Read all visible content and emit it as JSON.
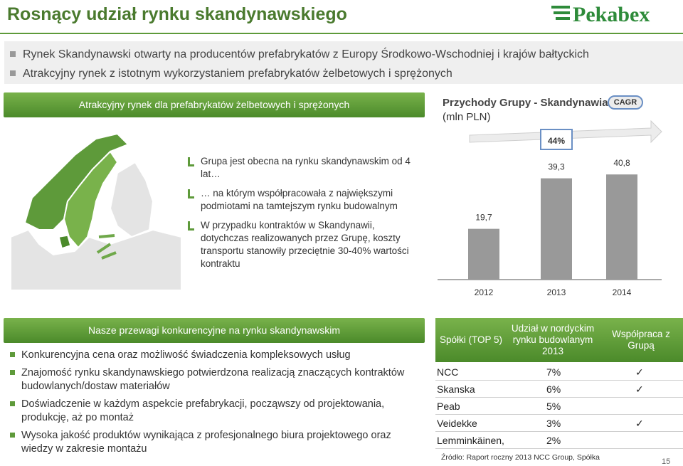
{
  "page": {
    "title": "Rosnący udział rynku skandynawskiego",
    "logo_text": "Pekabex",
    "top_bullets": [
      "Rynek Skandynawski otwarty na producentów prefabrykatów z Europy Środkowo-Wschodniej i krajów bałtyckich",
      "Atrakcyjny rynek z istotnym wykorzystaniem prefabrykatów żelbetowych i sprężonych"
    ],
    "section_top": {
      "header": "Atrakcyjny rynek dla prefabrykatów żelbetowych i sprężonych",
      "bullets": [
        "Grupa jest obecna na rynku skandynawskim od 4 lat…",
        "… na którym współpracowała z największymi podmiotami na tamtejszym rynku budowalnym",
        "W przypadku kontraktów w Skandynawii, dotychczas realizowanych przez Grupę, koszty transportu stanowiły przeciętnie 30-40% wartości kontraktu"
      ]
    },
    "section_bottom": {
      "header": "Nasze przewagi konkurencyjne na rynku skandynawskim",
      "bullets": [
        "Konkurencyjna cena oraz możliwość świadczenia kompleksowych usług",
        "Znajomość rynku skandynawskiego potwierdzona realizacją znaczących kontraktów budowlanych/dostaw materiałów",
        "Doświadczenie w każdym aspekcie prefabrykacji, począwszy od projektowania, produkcję, aż po montaż",
        "Wysoka jakość produktów wynikająca z profesjonalnego biura projektowego oraz wiedzy w zakresie montażu"
      ]
    },
    "table": {
      "headers": [
        "Spółki (TOP 5)",
        "Udział w nordyckim rynku budowlanym 2013",
        "Współpraca z Grupą"
      ],
      "rows": [
        {
          "company": "NCC",
          "share": "7%",
          "cooperation": "✓"
        },
        {
          "company": "Skanska",
          "share": "6%",
          "cooperation": "✓"
        },
        {
          "company": "Peab",
          "share": "5%",
          "cooperation": ""
        },
        {
          "company": "Veidekke",
          "share": "3%",
          "cooperation": "✓"
        },
        {
          "company": "Lemminkäinen,",
          "share": "2%",
          "cooperation": ""
        }
      ]
    },
    "source": "Źródło: Raport roczny 2013 NCC Group, Spółka",
    "page_number": "15"
  },
  "colors": {
    "brand_green": "#5e9a3a",
    "title_green": "#4a7a2e",
    "bar_gray": "#999999",
    "cagr_blue": "#6a8fc4"
  },
  "chart_data": {
    "type": "bar",
    "title": "Przychody Grupy - Skandynawia",
    "subtitle": "(mln PLN)",
    "categories": [
      "2012",
      "2013",
      "2014"
    ],
    "values": [
      19.7,
      39.3,
      40.8
    ],
    "value_labels": [
      "19,7",
      "39,3",
      "40,8"
    ],
    "ylim": [
      0,
      45
    ],
    "cagr_label": "CAGR",
    "cagr_value": "44%",
    "grid": false,
    "legend": "none"
  }
}
